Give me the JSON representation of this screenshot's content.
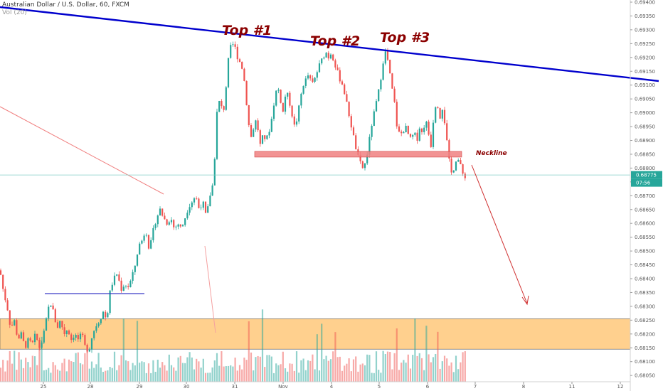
{
  "header": {
    "symbol_title": "Australian Dollar / U.S. Dollar, 60, FXCM",
    "volume_label": "Vol (20)"
  },
  "colors": {
    "bull": "#26a69a",
    "bear": "#ef5350",
    "trendline": "#0000cd",
    "neckline_fill": "#f08080",
    "support_zone": "#ffc87a",
    "annotation": "#8b0000",
    "current_price": "#26a69a"
  },
  "chart_data": {
    "type": "candlestick",
    "title": "Australian Dollar / U.S. Dollar, 60, FXCM",
    "x_ticks": [
      "25",
      "28",
      "29",
      "30",
      "31",
      "Nov",
      "4",
      "5",
      "6",
      "7",
      "8",
      "11",
      "12"
    ],
    "y_ticks": [
      "0.69400",
      "0.69350",
      "0.69300",
      "0.69250",
      "0.69200",
      "0.69150",
      "0.69100",
      "0.69050",
      "0.69000",
      "0.68950",
      "0.68900",
      "0.68850",
      "0.68800",
      "0.68750",
      "0.68700",
      "0.68650",
      "0.68600",
      "0.68550",
      "0.68500",
      "0.68450",
      "0.68400",
      "0.68350",
      "0.68300",
      "0.68250",
      "0.68200",
      "0.68150",
      "0.68100",
      "0.68050"
    ],
    "ylim": [
      0.6802,
      0.694
    ],
    "current_price": "0.68775",
    "countdown": "07:56",
    "annotations": {
      "tops": [
        "Top #1",
        "Top #2",
        "Top #3"
      ],
      "neckline_label": "Neckline",
      "neckline_price": 0.6885,
      "support_zone": [
        0.68145,
        0.68255
      ]
    },
    "close_path": [
      [
        0,
        0.6843
      ],
      [
        5,
        0.6835
      ],
      [
        10,
        0.683
      ],
      [
        15,
        0.6822
      ],
      [
        20,
        0.6825
      ],
      [
        25,
        0.6818
      ],
      [
        30,
        0.682
      ],
      [
        35,
        0.6815
      ],
      [
        40,
        0.6818
      ],
      [
        45,
        0.6816
      ],
      [
        50,
        0.682
      ],
      [
        55,
        0.6815
      ],
      [
        60,
        0.6818
      ],
      [
        65,
        0.6825
      ],
      [
        70,
        0.6832
      ],
      [
        75,
        0.6828
      ],
      [
        80,
        0.6822
      ],
      [
        85,
        0.6825
      ],
      [
        90,
        0.682
      ],
      [
        95,
        0.6822
      ],
      [
        100,
        0.6818
      ],
      [
        105,
        0.682
      ],
      [
        110,
        0.6818
      ],
      [
        115,
        0.682
      ],
      [
        120,
        0.6815
      ],
      [
        125,
        0.6814
      ],
      [
        130,
        0.682
      ],
      [
        135,
        0.6823
      ],
      [
        140,
        0.6825
      ],
      [
        145,
        0.6828
      ],
      [
        150,
        0.6825
      ],
      [
        155,
        0.6836
      ],
      [
        160,
        0.684
      ],
      [
        165,
        0.6842
      ],
      [
        170,
        0.6836
      ],
      [
        175,
        0.6838
      ],
      [
        180,
        0.6837
      ],
      [
        185,
        0.684
      ],
      [
        190,
        0.6845
      ],
      [
        195,
        0.6852
      ],
      [
        200,
        0.6854
      ],
      [
        205,
        0.6858
      ],
      [
        210,
        0.685
      ],
      [
        215,
        0.6857
      ],
      [
        220,
        0.6862
      ],
      [
        225,
        0.6865
      ],
      [
        230,
        0.6862
      ],
      [
        235,
        0.686
      ],
      [
        240,
        0.6862
      ],
      [
        245,
        0.6858
      ],
      [
        250,
        0.686
      ],
      [
        255,
        0.6858
      ],
      [
        260,
        0.6862
      ],
      [
        265,
        0.6866
      ],
      [
        270,
        0.6868
      ],
      [
        275,
        0.687
      ],
      [
        280,
        0.6865
      ],
      [
        285,
        0.6868
      ],
      [
        290,
        0.6862
      ],
      [
        295,
        0.687
      ],
      [
        300,
        0.6875
      ],
      [
        303,
        0.689
      ],
      [
        306,
        0.6905
      ],
      [
        310,
        0.6903
      ],
      [
        314,
        0.69
      ],
      [
        318,
        0.691
      ],
      [
        322,
        0.6922
      ],
      [
        326,
        0.6925
      ],
      [
        330,
        0.6924
      ],
      [
        334,
        0.692
      ],
      [
        338,
        0.6918
      ],
      [
        342,
        0.6915
      ],
      [
        346,
        0.6905
      ],
      [
        350,
        0.6895
      ],
      [
        354,
        0.689
      ],
      [
        358,
        0.6898
      ],
      [
        362,
        0.6895
      ],
      [
        366,
        0.6888
      ],
      [
        370,
        0.6892
      ],
      [
        374,
        0.689
      ],
      [
        378,
        0.6893
      ],
      [
        382,
        0.6898
      ],
      [
        386,
        0.6905
      ],
      [
        390,
        0.691
      ],
      [
        394,
        0.6905
      ],
      [
        398,
        0.69
      ],
      [
        402,
        0.6908
      ],
      [
        406,
        0.6905
      ],
      [
        410,
        0.69
      ],
      [
        414,
        0.6895
      ],
      [
        418,
        0.6898
      ],
      [
        422,
        0.6905
      ],
      [
        426,
        0.691
      ],
      [
        430,
        0.6912
      ],
      [
        434,
        0.6914
      ],
      [
        438,
        0.691
      ],
      [
        442,
        0.6912
      ],
      [
        446,
        0.6915
      ],
      [
        450,
        0.6918
      ],
      [
        454,
        0.692
      ],
      [
        458,
        0.6922
      ],
      [
        462,
        0.692
      ],
      [
        466,
        0.6922
      ],
      [
        470,
        0.6918
      ],
      [
        474,
        0.6915
      ],
      [
        478,
        0.6912
      ],
      [
        482,
        0.691
      ],
      [
        486,
        0.6905
      ],
      [
        490,
        0.69
      ],
      [
        494,
        0.6895
      ],
      [
        498,
        0.689
      ],
      [
        502,
        0.6885
      ],
      [
        506,
        0.6882
      ],
      [
        510,
        0.688
      ],
      [
        514,
        0.6882
      ],
      [
        518,
        0.6888
      ],
      [
        522,
        0.6895
      ],
      [
        526,
        0.69
      ],
      [
        530,
        0.6905
      ],
      [
        534,
        0.691
      ],
      [
        538,
        0.6918
      ],
      [
        542,
        0.6922
      ],
      [
        546,
        0.6918
      ],
      [
        550,
        0.691
      ],
      [
        554,
        0.6905
      ],
      [
        558,
        0.6895
      ],
      [
        562,
        0.6892
      ],
      [
        566,
        0.6893
      ],
      [
        570,
        0.6895
      ],
      [
        574,
        0.6892
      ],
      [
        578,
        0.689
      ],
      [
        582,
        0.6893
      ],
      [
        586,
        0.689
      ],
      [
        590,
        0.6895
      ],
      [
        594,
        0.6892
      ],
      [
        598,
        0.6898
      ],
      [
        602,
        0.6893
      ],
      [
        606,
        0.6888
      ],
      [
        610,
        0.69
      ],
      [
        614,
        0.6905
      ],
      [
        618,
        0.6898
      ],
      [
        622,
        0.6902
      ],
      [
        626,
        0.6895
      ],
      [
        630,
        0.6885
      ],
      [
        634,
        0.6878
      ],
      [
        638,
        0.688
      ],
      [
        642,
        0.6884
      ],
      [
        646,
        0.6882
      ],
      [
        650,
        0.6878
      ],
      [
        654,
        0.6877
      ]
    ]
  }
}
